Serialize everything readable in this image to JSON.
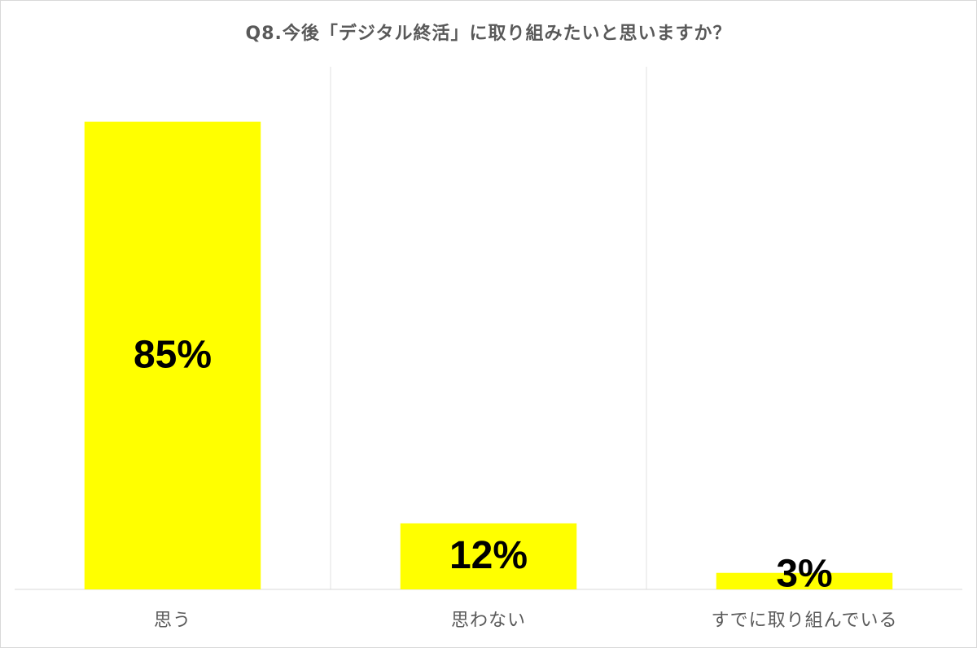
{
  "chart_data": {
    "type": "bar",
    "title": "Q8.今後「デジタル終活」に取り組みたいと思いますか？",
    "categories": [
      "思う",
      "思わない",
      "すでに取り組んでいる"
    ],
    "values": [
      85,
      12,
      3
    ],
    "value_labels": [
      "85%",
      "12%",
      "3%"
    ],
    "color": "#ffff00",
    "ylim": [
      0,
      95
    ]
  }
}
